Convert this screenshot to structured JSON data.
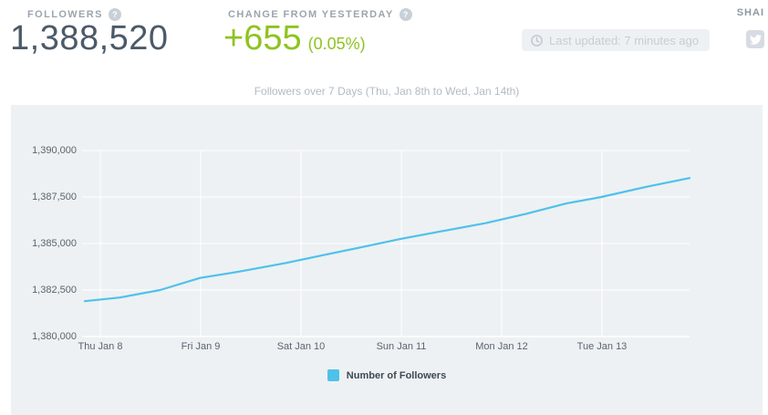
{
  "header": {
    "followers": {
      "label": "FOLLOWERS",
      "value": "1,388,520"
    },
    "change": {
      "label": "CHANGE FROM YESTERDAY",
      "value": "+655",
      "percent": "(0.05%)"
    },
    "help_icon_glyph": "?",
    "last_updated": "Last updated: 7 minutes ago",
    "share_label": "SHAI"
  },
  "icons": {
    "clock": "clock-icon",
    "twitter": "twitter-bird-icon",
    "help": "question-mark-icon"
  },
  "colors": {
    "accent_green": "#8fc31f",
    "line_blue": "#4fc1ea",
    "panel_bg": "#edf1f3",
    "number_dark": "#4c5a68",
    "gridline": "#ffffff"
  },
  "chart_data": {
    "type": "line",
    "title": "Followers over 7 Days (Thu, Jan 8th to Wed, Jan 14th)",
    "xlabel": "",
    "ylabel": "",
    "x_unit": "days since start of window (Thu Jan 8)",
    "x_tick_labels": [
      "Thu Jan 8",
      "Fri Jan 9",
      "Sat Jan 10",
      "Sun Jan 11",
      "Mon Jan 12",
      "Tue Jan 13"
    ],
    "y_tick_labels": [
      "1,390,000",
      "1,387,500",
      "1,385,000",
      "1,382,500",
      "1,380,000"
    ],
    "y_tick_values": [
      1390000,
      1387500,
      1385000,
      1382500,
      1380000
    ],
    "ylim": [
      1380000,
      1390000
    ],
    "grid": true,
    "legend_position": "bottom",
    "series": [
      {
        "name": "Number of Followers",
        "color": "#4fc1ea",
        "points": [
          [
            0.0,
            1381900
          ],
          [
            0.35,
            1382100
          ],
          [
            0.75,
            1382500
          ],
          [
            1.15,
            1383150
          ],
          [
            1.55,
            1383500
          ],
          [
            2.0,
            1383950
          ],
          [
            2.4,
            1384400
          ],
          [
            2.8,
            1384850
          ],
          [
            3.15,
            1385250
          ],
          [
            3.55,
            1385650
          ],
          [
            4.0,
            1386100
          ],
          [
            4.4,
            1386600
          ],
          [
            4.8,
            1387150
          ],
          [
            5.15,
            1387500
          ],
          [
            5.6,
            1388050
          ],
          [
            6.03,
            1388520
          ]
        ]
      }
    ]
  }
}
